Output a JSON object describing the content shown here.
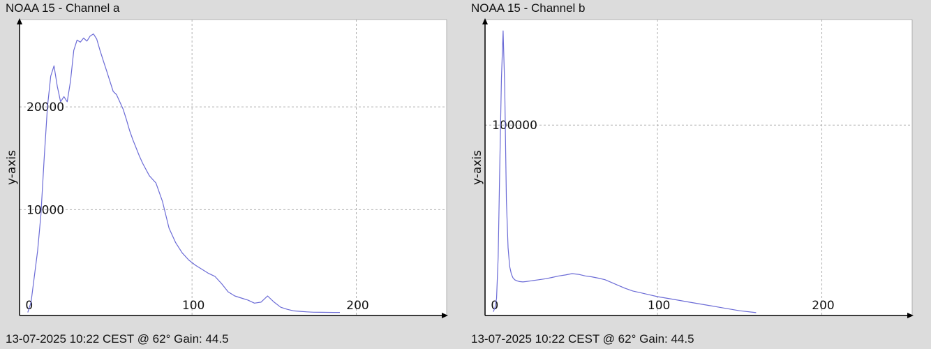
{
  "colors": {
    "background": "#dcdcdc",
    "plot_background": "#ffffff",
    "grid": "#b0b0b0",
    "series": "#6b6bd6",
    "axis": "#000000"
  },
  "chart_data": [
    {
      "type": "line",
      "title": "NOAA 15 - Channel a",
      "footer": "13-07-2025 10:22 CEST @ 62° Gain: 44.5",
      "xlabel": "",
      "ylabel": "y-axis",
      "xlim": [
        -5,
        255
      ],
      "ylim": [
        -300,
        28500
      ],
      "xticks": [
        0,
        100,
        200
      ],
      "yticks": [
        10000,
        20000
      ],
      "grid": true,
      "series": [
        {
          "x": [
            0,
            2,
            4,
            6,
            8,
            10,
            12,
            14,
            16,
            18,
            20,
            22,
            24,
            26,
            28,
            30,
            32,
            34,
            36,
            38,
            40,
            42,
            44,
            46,
            48,
            50,
            52,
            54,
            56,
            58,
            60,
            62,
            64,
            66,
            68,
            70,
            74,
            78,
            82,
            86,
            90,
            94,
            98,
            102,
            106,
            110,
            114,
            118,
            122,
            126,
            130,
            134,
            138,
            142,
            146,
            150,
            154,
            158,
            162,
            166,
            170,
            174,
            178,
            182,
            186,
            190
          ],
          "values": [
            0,
            1000,
            3500,
            6000,
            9500,
            15000,
            20000,
            23000,
            24000,
            22000,
            20500,
            21000,
            20500,
            22500,
            25500,
            26500,
            26300,
            26700,
            26400,
            26900,
            27100,
            26600,
            25500,
            24500,
            23500,
            22500,
            21500,
            21200,
            20500,
            19800,
            18800,
            17700,
            16800,
            16000,
            15200,
            14500,
            13300,
            12600,
            10800,
            8200,
            6800,
            5800,
            5100,
            4600,
            4200,
            3800,
            3500,
            2800,
            2000,
            1600,
            1400,
            1200,
            900,
            1000,
            1600,
            1000,
            500,
            300,
            150,
            100,
            50,
            20,
            10,
            5,
            0,
            0
          ]
        }
      ]
    },
    {
      "type": "line",
      "title": "NOAA 15 - Channel b",
      "footer": "13-07-2025 10:22 CEST @ 62° Gain: 44.5",
      "xlabel": "",
      "ylabel": "y-axis",
      "xlim": [
        -5,
        255
      ],
      "ylim": [
        -1000,
        156000
      ],
      "xticks": [
        0,
        100,
        200
      ],
      "yticks": [
        100000
      ],
      "grid": true,
      "series": [
        {
          "x": [
            0,
            1,
            2,
            3,
            4,
            5,
            6,
            7,
            8,
            9,
            10,
            11,
            12,
            13,
            14,
            16,
            18,
            20,
            24,
            28,
            32,
            36,
            40,
            44,
            48,
            52,
            56,
            60,
            64,
            68,
            72,
            76,
            80,
            85,
            90,
            95,
            100,
            110,
            120,
            130,
            140,
            150,
            160
          ],
          "values": [
            1000,
            3000,
            8000,
            30000,
            80000,
            125000,
            150000,
            120000,
            60000,
            35000,
            25000,
            21000,
            19000,
            18000,
            17500,
            17000,
            16800,
            17000,
            17500,
            18000,
            18500,
            19200,
            20000,
            20500,
            21200,
            20800,
            20000,
            19500,
            18800,
            18000,
            16500,
            15000,
            13500,
            12000,
            11000,
            10000,
            9000,
            7500,
            6000,
            4500,
            3000,
            1500,
            500
          ]
        }
      ]
    }
  ]
}
